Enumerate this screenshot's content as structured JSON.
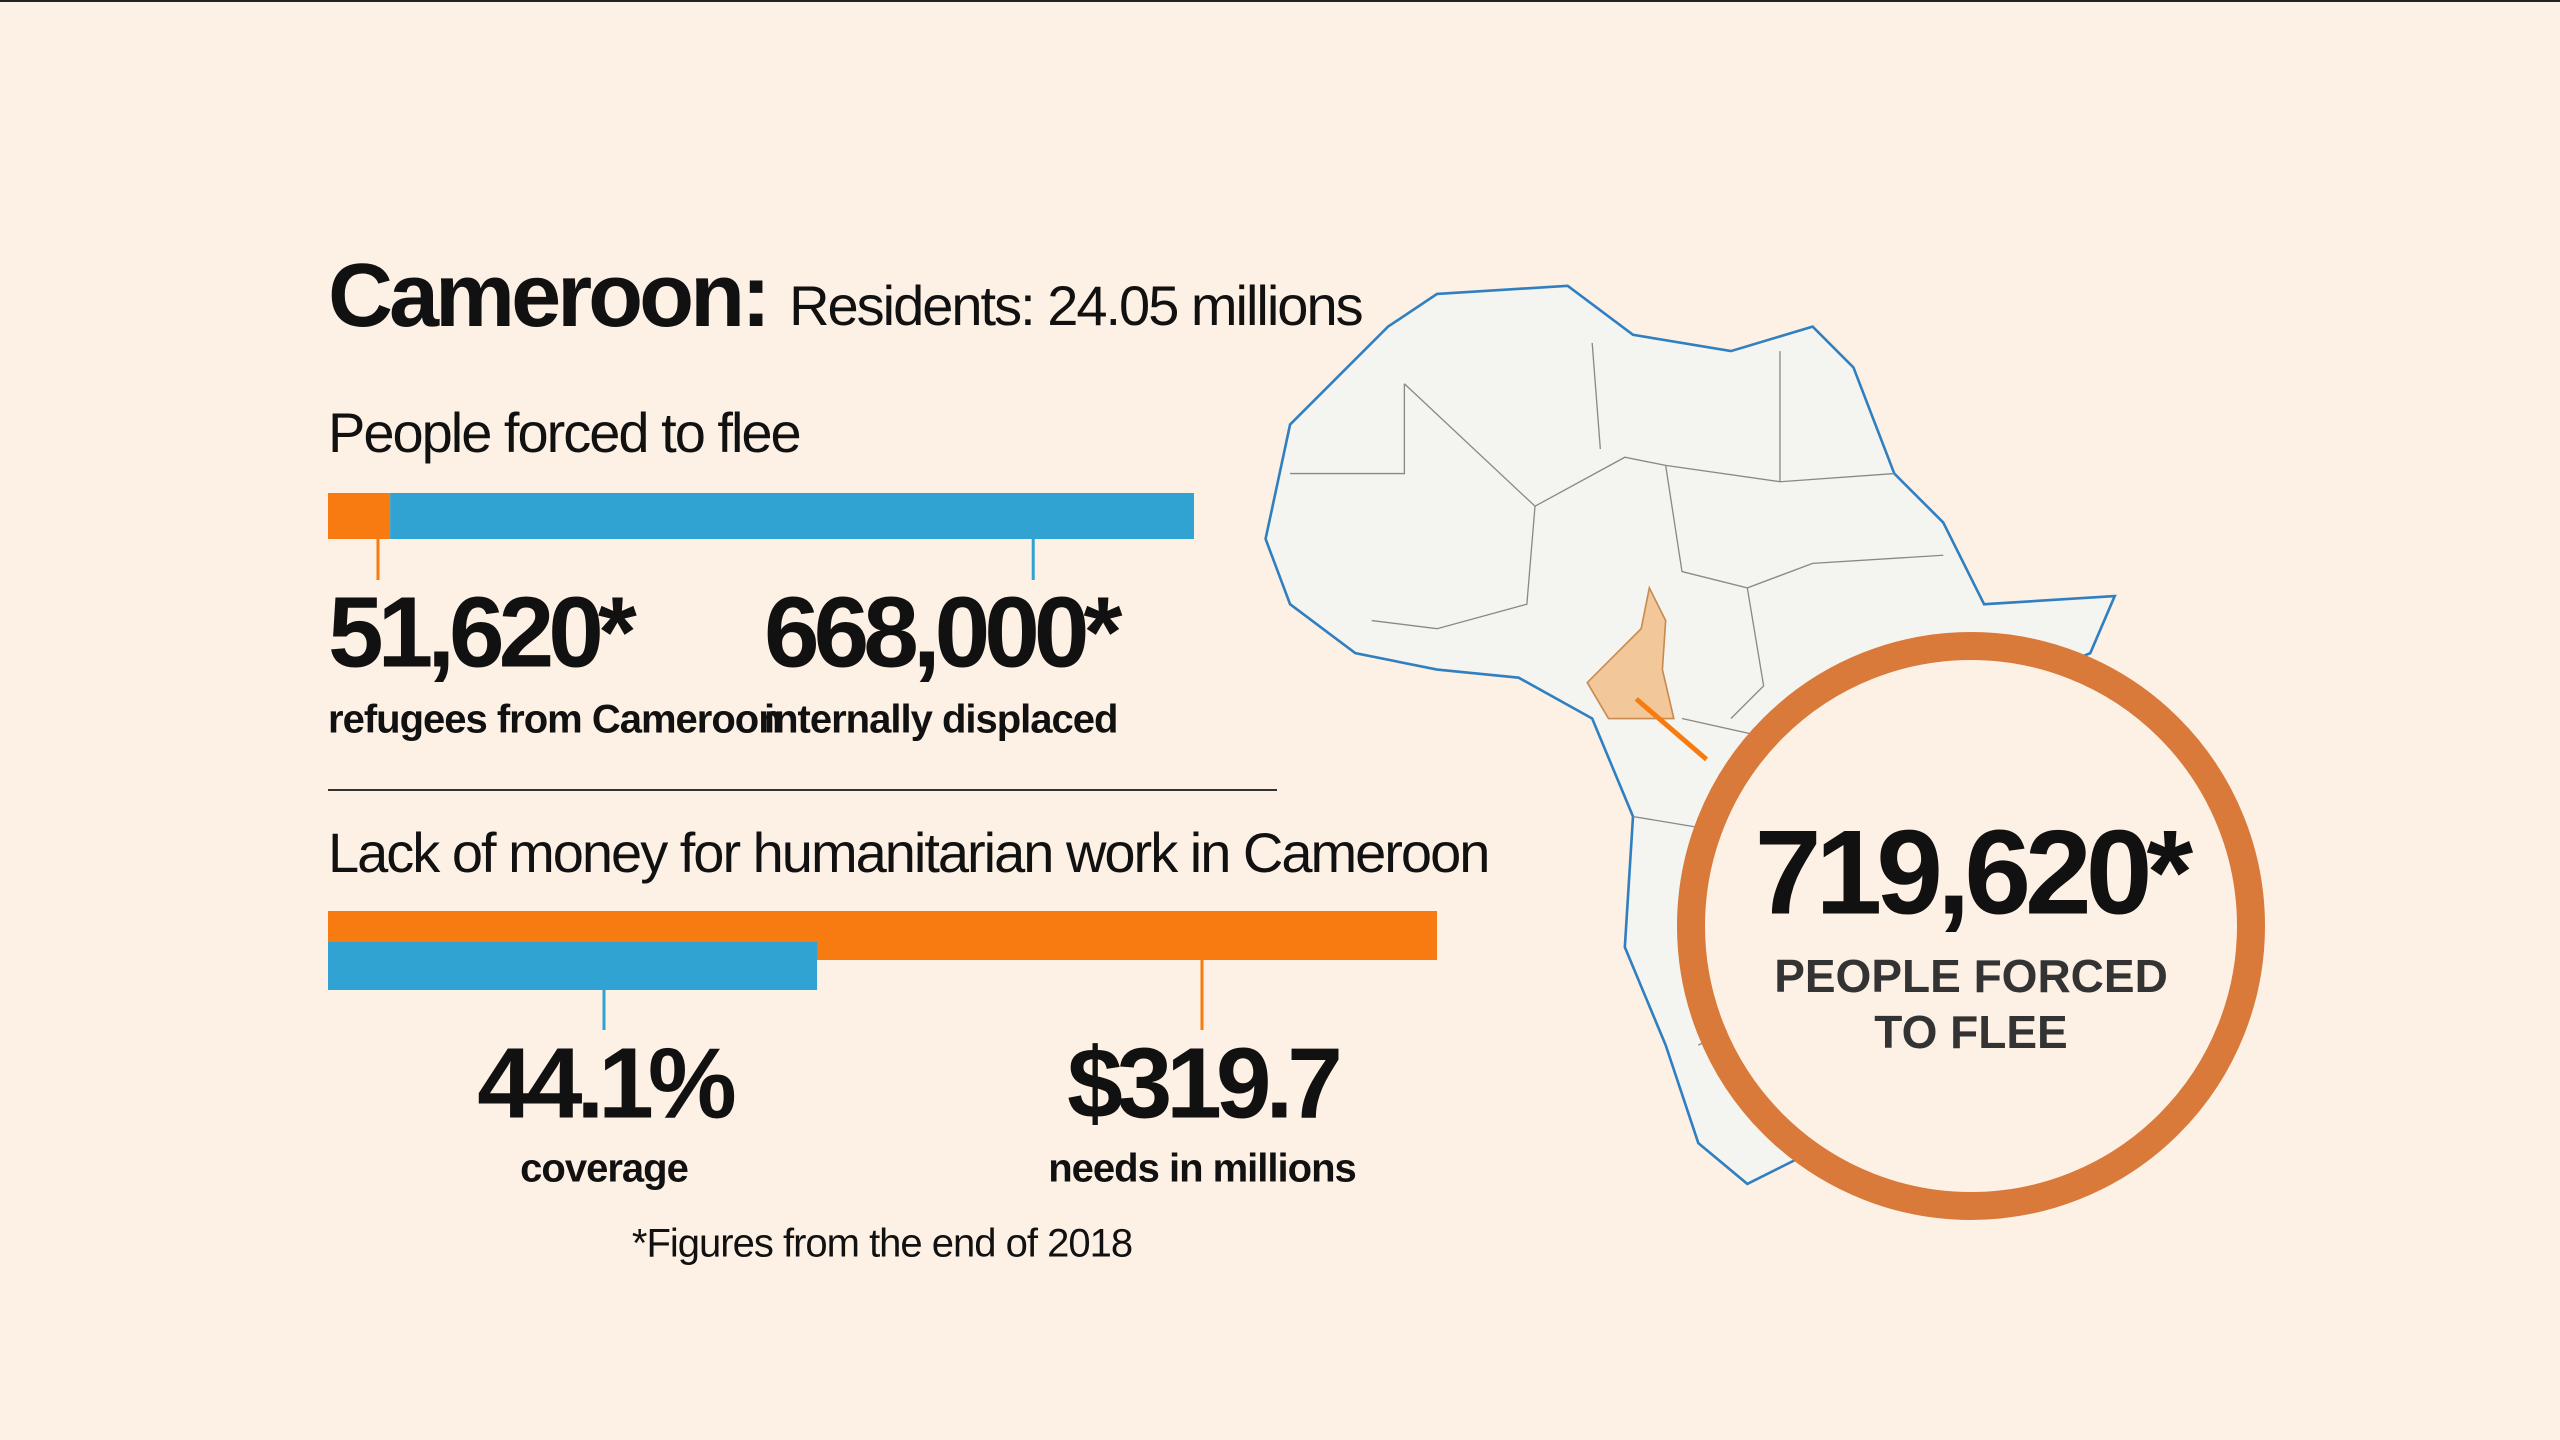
{
  "title": "Cameroon:",
  "subtitle": "Residents: 24.05 millions",
  "flee": {
    "heading": "People forced to flee",
    "items": [
      {
        "value": 51620,
        "label": "51,620*",
        "caption": "refugees from Cameroon",
        "color": "#f77b10"
      },
      {
        "value": 668000,
        "label": "668,000*",
        "caption": "internally displaced",
        "color": "#30a3d2"
      }
    ]
  },
  "funding": {
    "heading": "Lack of money for humanitarian work in Cameroon",
    "coverage": {
      "value": 44.1,
      "label": "44.1%",
      "caption": "coverage",
      "color": "#30a3d2"
    },
    "needs": {
      "value": 319.7,
      "label": "$319.7",
      "caption": "needs in millions",
      "color": "#f77b10"
    }
  },
  "callout": {
    "value": 719620,
    "label": "719,620*",
    "caption": [
      "PEOPLE FORCED",
      "TO FLEE"
    ]
  },
  "footnote": "*Figures from the end of 2018"
}
